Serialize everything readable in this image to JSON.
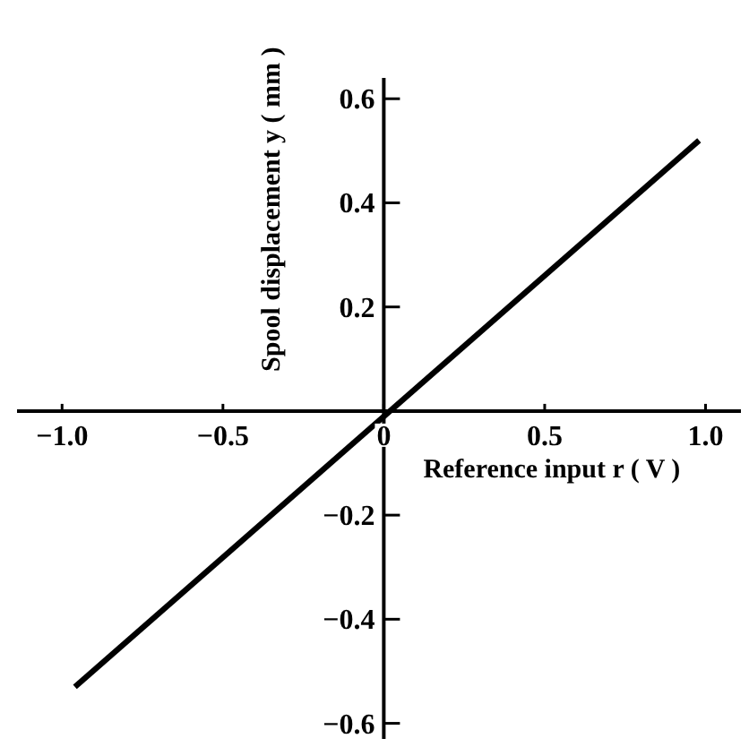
{
  "chart_data": {
    "type": "line",
    "xlabel": "Reference input r ( V )",
    "ylabel": "Spool displacement y ( mm )",
    "x": [
      -0.96,
      0.98
    ],
    "series": [
      {
        "color": "#000000",
        "values": [
          -0.53,
          0.52
        ]
      }
    ],
    "xlim": [
      -1.14,
      1.11
    ],
    "ylim": [
      -0.63,
      0.64
    ],
    "xticks": [
      {
        "value": -1.0,
        "label": "−1.0"
      },
      {
        "value": -0.5,
        "label": "−0.5"
      },
      {
        "value": 0,
        "label": "0"
      },
      {
        "value": 0.5,
        "label": "0.5"
      },
      {
        "value": 1.0,
        "label": "1.0"
      }
    ],
    "yticks": [
      {
        "value": -0.6,
        "label": "−0.6"
      },
      {
        "value": -0.4,
        "label": "−0.4"
      },
      {
        "value": -0.2,
        "label": "−0.2"
      },
      {
        "value": 0.2,
        "label": "0.2"
      },
      {
        "value": 0.4,
        "label": "0.4"
      },
      {
        "value": 0.6,
        "label": "0.6"
      }
    ],
    "line_style": "solid"
  }
}
